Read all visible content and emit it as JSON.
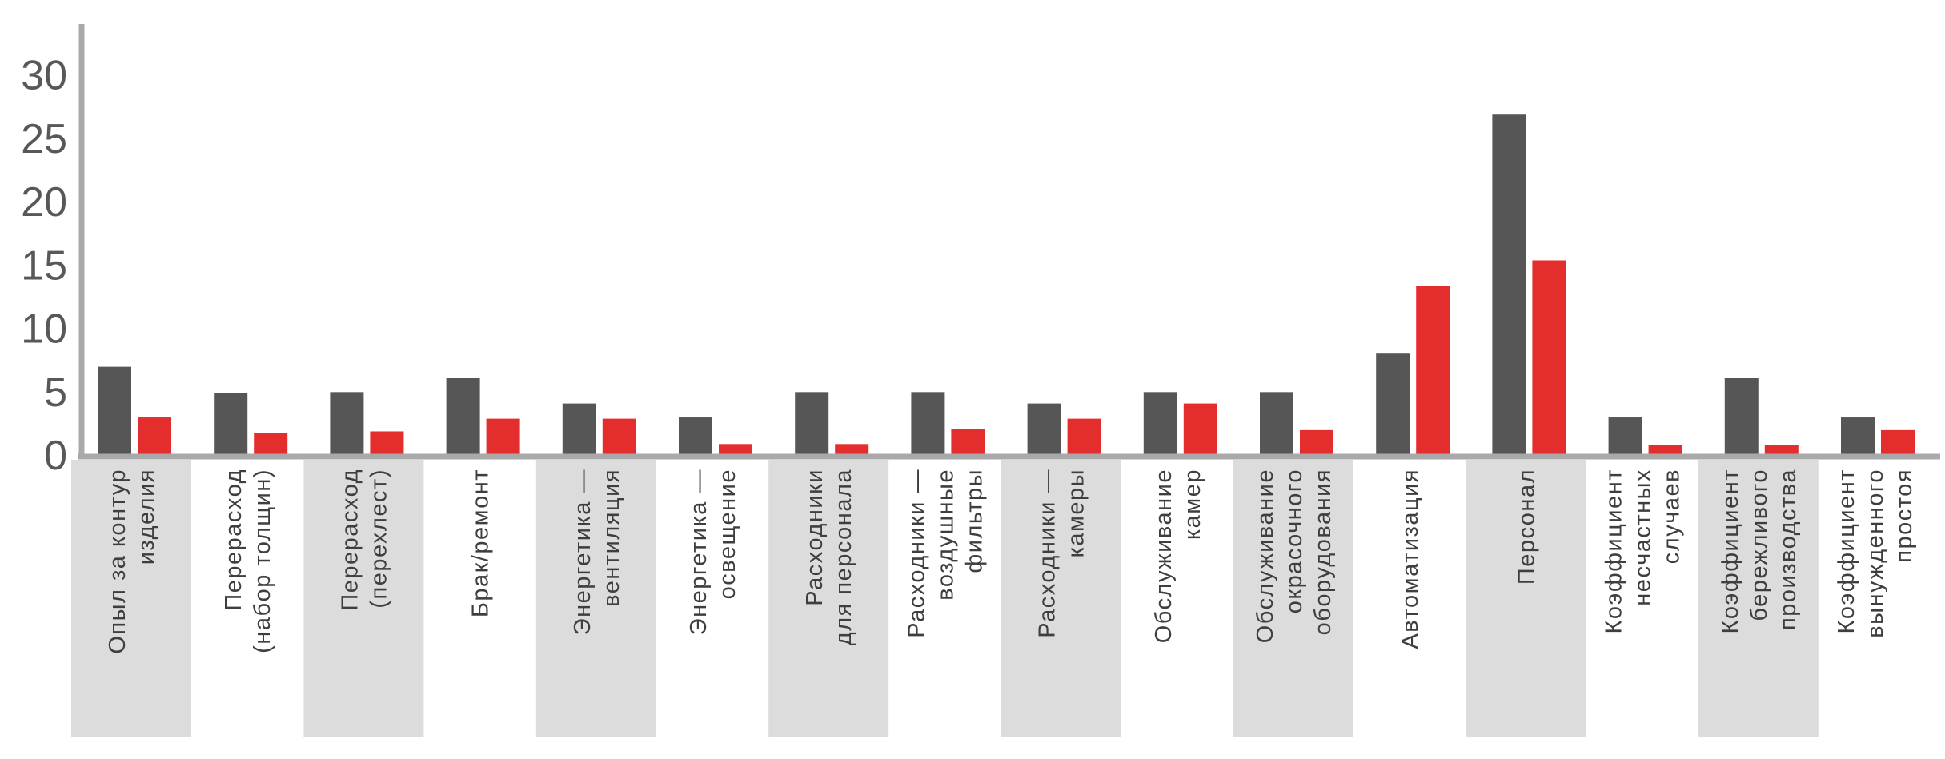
{
  "chart_data": {
    "type": "bar",
    "title": "",
    "xlabel": "",
    "ylabel": "",
    "ylim": [
      0,
      32
    ],
    "yticks": [
      "0",
      "5",
      "10",
      "15",
      "20",
      "25",
      "30"
    ],
    "grid": false,
    "legend": "none",
    "colors": {
      "series_dark": "#575656",
      "series_red": "#e42d2d",
      "axis": "#a9a9a9",
      "band": "#dcdcdc"
    },
    "categories": [
      [
        "Опыл за контур",
        "изделия"
      ],
      [
        "Перерасход",
        "(набор толщин)"
      ],
      [
        "Перерасход",
        "(перехлест)"
      ],
      [
        "Брак/ремонт"
      ],
      [
        "Энергетика —",
        "вентиляция"
      ],
      [
        "Энергетика —",
        "освещение"
      ],
      [
        "Расходники",
        "для персонала"
      ],
      [
        "Расходники —",
        "воздушные",
        "фильтры"
      ],
      [
        "Расходники —",
        "камеры"
      ],
      [
        "Обслуживание",
        "камер"
      ],
      [
        "Обслуживание",
        "окрасочного",
        "оборудования"
      ],
      [
        "Автоматизация"
      ],
      [
        "Персонал"
      ],
      [
        "Коэффициент",
        "несчастных",
        "случаев"
      ],
      [
        "Коэффициент",
        "бережливого",
        "производства"
      ],
      [
        "Коэффициент",
        "вынужденного",
        "простоя"
      ]
    ],
    "series": [
      {
        "values": [
          6.9,
          4.8,
          4.9,
          6.0,
          4.0,
          2.9,
          4.9,
          4.9,
          4.0,
          4.9,
          4.9,
          8.0,
          26.8,
          2.9,
          6.0,
          2.9
        ]
      },
      {
        "values": [
          2.9,
          1.7,
          1.8,
          2.8,
          2.8,
          0.8,
          0.8,
          2.0,
          2.8,
          4.0,
          1.9,
          13.3,
          15.3,
          0.7,
          0.7,
          1.9
        ]
      }
    ]
  }
}
